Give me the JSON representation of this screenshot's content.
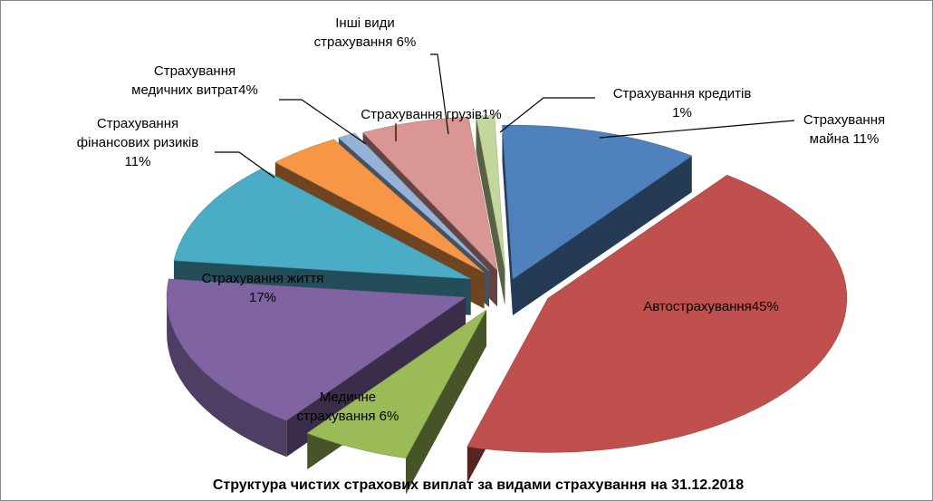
{
  "chart_data": {
    "type": "pie",
    "title": "Структура чистих страхових виплат за видами страхування на 31.12.2018",
    "unit": "%",
    "slices": [
      {
        "label": [
          "Страхування",
          "майна 11%"
        ],
        "value": 11,
        "color": "#4f81bd"
      },
      {
        "label": [
          "Автострахування45%"
        ],
        "value": 45,
        "color": "#c0504d"
      },
      {
        "label": [
          "Медичне",
          "страхування 6%"
        ],
        "value": 6,
        "color": "#9bbb59"
      },
      {
        "label": [
          "Страхування життя",
          "17%"
        ],
        "value": 17,
        "color": "#8064a2"
      },
      {
        "label": [
          "Страхування",
          "фінансових ризиків",
          "11%"
        ],
        "value": 11,
        "color": "#4bacc6"
      },
      {
        "label": [
          "Страхування",
          "медичних витрат4%"
        ],
        "value": 4,
        "color": "#f79646"
      },
      {
        "label": [
          "Страхування грузів1%"
        ],
        "value": 1,
        "color": "#95b3d7"
      },
      {
        "label": [
          "Інші види",
          "страхування 6%"
        ],
        "value": 6,
        "color": "#d99694"
      },
      {
        "label": [
          "Страхування кредитів",
          "1%"
        ],
        "value": 1,
        "color": "#c3d69b"
      }
    ]
  }
}
